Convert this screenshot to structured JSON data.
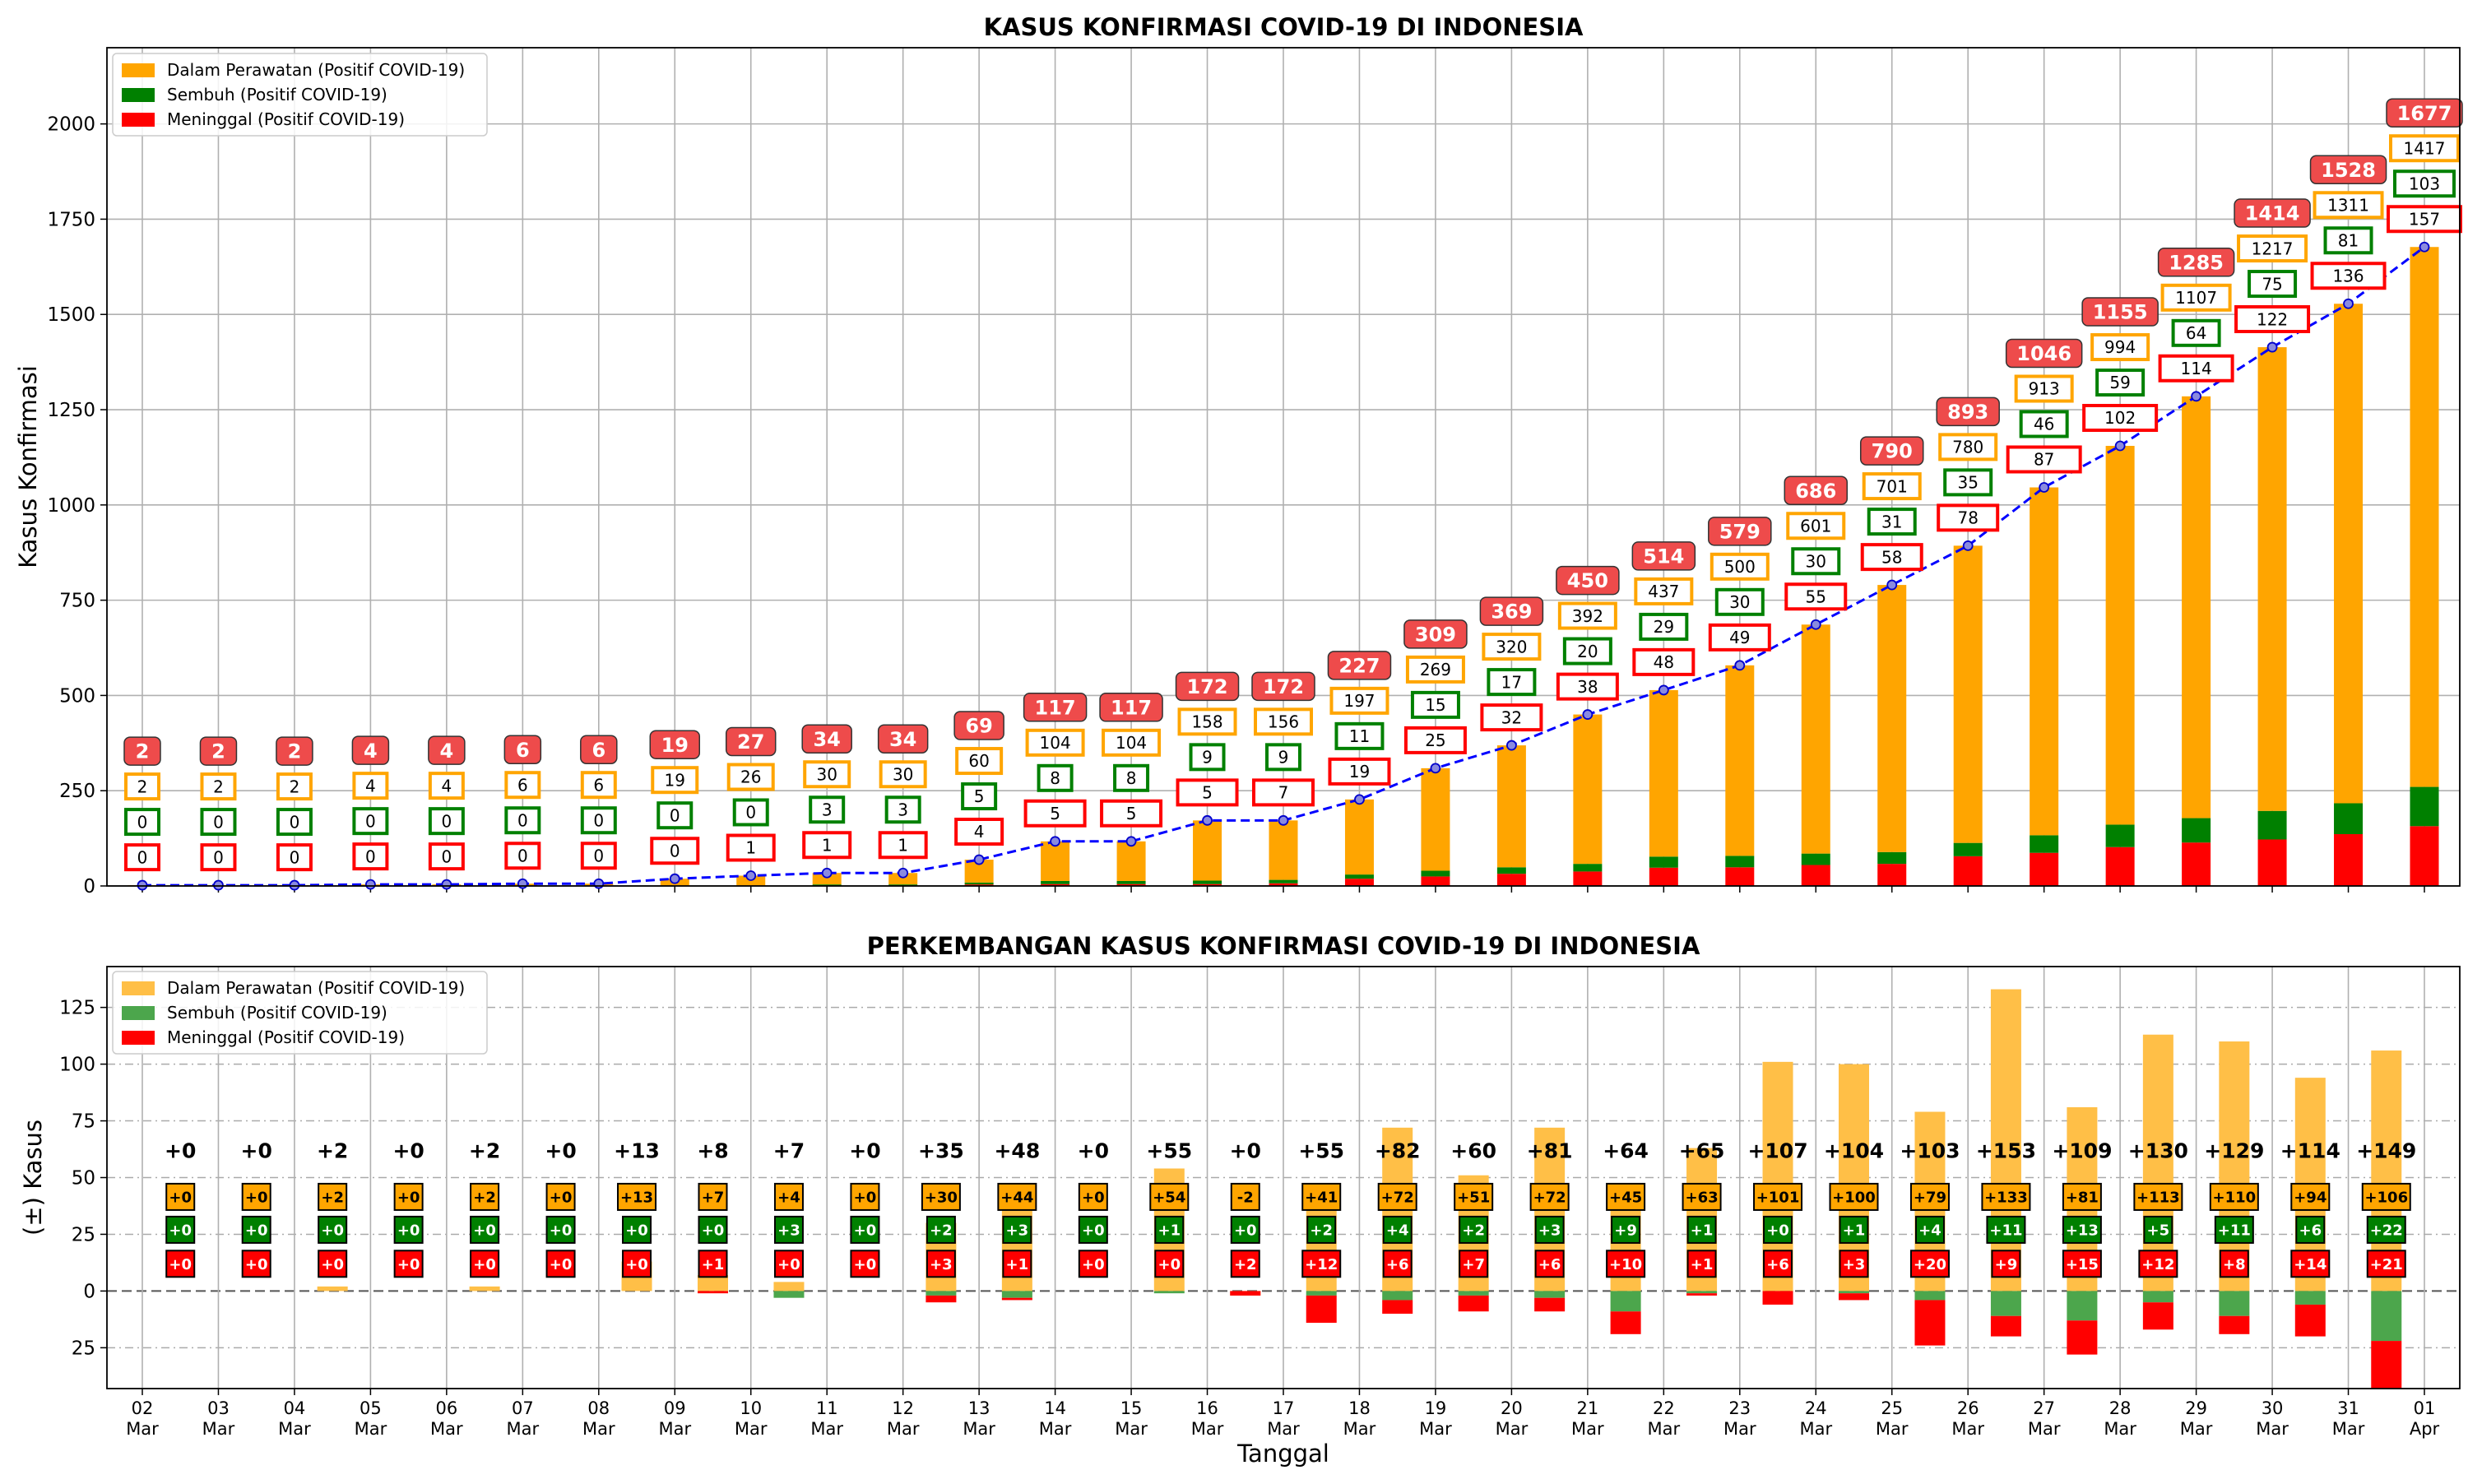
{
  "chart_data": [
    {
      "type": "bar",
      "stacked": true,
      "title": "KASUS KONFIRMASI COVID-19 DI INDONESIA",
      "ylabel": "Kasus Konfirmasi",
      "ylim": [
        0,
        2200
      ],
      "yticks": [
        "0",
        "250",
        "500",
        "750",
        "1000",
        "1250",
        "1500",
        "1750",
        "2000"
      ],
      "grid": true,
      "legend_position": "top-left",
      "categories": [
        [
          "02",
          "Mar"
        ],
        [
          "03",
          "Mar"
        ],
        [
          "04",
          "Mar"
        ],
        [
          "05",
          "Mar"
        ],
        [
          "06",
          "Mar"
        ],
        [
          "07",
          "Mar"
        ],
        [
          "08",
          "Mar"
        ],
        [
          "09",
          "Mar"
        ],
        [
          "10",
          "Mar"
        ],
        [
          "11",
          "Mar"
        ],
        [
          "12",
          "Mar"
        ],
        [
          "13",
          "Mar"
        ],
        [
          "14",
          "Mar"
        ],
        [
          "15",
          "Mar"
        ],
        [
          "16",
          "Mar"
        ],
        [
          "17",
          "Mar"
        ],
        [
          "18",
          "Mar"
        ],
        [
          "19",
          "Mar"
        ],
        [
          "20",
          "Mar"
        ],
        [
          "21",
          "Mar"
        ],
        [
          "22",
          "Mar"
        ],
        [
          "23",
          "Mar"
        ],
        [
          "24",
          "Mar"
        ],
        [
          "25",
          "Mar"
        ],
        [
          "26",
          "Mar"
        ],
        [
          "27",
          "Mar"
        ],
        [
          "28",
          "Mar"
        ],
        [
          "29",
          "Mar"
        ],
        [
          "30",
          "Mar"
        ],
        [
          "31",
          "Mar"
        ],
        [
          "01",
          "Apr"
        ]
      ],
      "series": [
        {
          "name": "Dalam Perawatan (Positif COVID-19)",
          "color": "#ffa500",
          "values": [
            2,
            2,
            2,
            4,
            4,
            6,
            6,
            19,
            26,
            30,
            30,
            60,
            104,
            104,
            158,
            156,
            197,
            269,
            320,
            392,
            437,
            500,
            601,
            701,
            780,
            913,
            994,
            1107,
            1217,
            1311,
            1417
          ]
        },
        {
          "name": "Sembuh (Positif COVID-19)",
          "color": "#008000",
          "values": [
            0,
            0,
            0,
            0,
            0,
            0,
            0,
            0,
            0,
            3,
            3,
            5,
            8,
            8,
            9,
            9,
            11,
            15,
            17,
            20,
            29,
            30,
            30,
            31,
            35,
            46,
            59,
            64,
            75,
            81,
            103
          ]
        },
        {
          "name": "Meninggal (Positif COVID-19)",
          "color": "#ff0000",
          "values": [
            0,
            0,
            0,
            0,
            0,
            0,
            0,
            0,
            1,
            1,
            1,
            4,
            5,
            5,
            5,
            7,
            19,
            25,
            32,
            38,
            48,
            49,
            55,
            58,
            78,
            87,
            102,
            114,
            122,
            136,
            157
          ]
        }
      ],
      "total": [
        2,
        2,
        2,
        4,
        4,
        6,
        6,
        19,
        27,
        34,
        34,
        69,
        117,
        117,
        172,
        172,
        227,
        309,
        369,
        450,
        514,
        579,
        686,
        790,
        893,
        1046,
        1155,
        1285,
        1414,
        1528,
        1677
      ],
      "total_line_color": "#0000ff"
    },
    {
      "type": "bar",
      "title": "PERKEMBANGAN KASUS KONFIRMASI COVID-19 DI INDONESIA",
      "xlabel": "Tanggal",
      "ylabel": "(±) Kasus",
      "ylim": [
        -43,
        143
      ],
      "yticks": [
        {
          "v": 125,
          "label": "125"
        },
        {
          "v": 100,
          "label": "100"
        },
        {
          "v": 75,
          "label": "75"
        },
        {
          "v": 50,
          "label": "50"
        },
        {
          "v": 25,
          "label": "25"
        },
        {
          "v": 0,
          "label": "0"
        },
        {
          "v": -25,
          "label": "25"
        }
      ],
      "legend_position": "top-left",
      "series": [
        {
          "name": "Dalam Perawatan (Positif COVID-19)",
          "color": "#ffbf47",
          "values": [
            0,
            0,
            2,
            0,
            2,
            0,
            13,
            7,
            4,
            0,
            30,
            44,
            0,
            54,
            -2,
            41,
            72,
            51,
            72,
            45,
            63,
            101,
            100,
            79,
            133,
            81,
            113,
            110,
            94,
            106
          ],
          "labels": [
            "+0",
            "+0",
            "+2",
            "+0",
            "+2",
            "+0",
            "+13",
            "+7",
            "+4",
            "+0",
            "+30",
            "+44",
            "+0",
            "+54",
            "-2",
            "+41",
            "+72",
            "+51",
            "+72",
            "+45",
            "+63",
            "+101",
            "+100",
            "+79",
            "+133",
            "+81",
            "+113",
            "+110",
            "+94",
            "+106"
          ]
        },
        {
          "name": "Sembuh (Positif COVID-19)",
          "color": "#4ca64c",
          "values": [
            0,
            0,
            0,
            0,
            0,
            0,
            0,
            0,
            3,
            0,
            2,
            3,
            0,
            1,
            0,
            2,
            4,
            2,
            3,
            9,
            1,
            0,
            1,
            4,
            11,
            13,
            5,
            11,
            6,
            22
          ],
          "labels": [
            "+0",
            "+0",
            "+0",
            "+0",
            "+0",
            "+0",
            "+0",
            "+0",
            "+3",
            "+0",
            "+2",
            "+3",
            "+0",
            "+1",
            "+0",
            "+2",
            "+4",
            "+2",
            "+3",
            "+9",
            "+1",
            "+0",
            "+1",
            "+4",
            "+11",
            "+13",
            "+5",
            "+11",
            "+6",
            "+22"
          ]
        },
        {
          "name": "Meninggal (Positif COVID-19)",
          "color": "#ff0000",
          "values": [
            0,
            0,
            0,
            0,
            0,
            0,
            0,
            1,
            0,
            0,
            3,
            1,
            0,
            0,
            2,
            12,
            6,
            7,
            6,
            10,
            1,
            6,
            3,
            20,
            9,
            15,
            12,
            8,
            14,
            21
          ],
          "labels": [
            "+0",
            "+0",
            "+0",
            "+0",
            "+0",
            "+0",
            "+0",
            "+1",
            "+0",
            "+0",
            "+3",
            "+1",
            "+0",
            "+0",
            "+2",
            "+12",
            "+6",
            "+7",
            "+6",
            "+10",
            "+1",
            "+6",
            "+3",
            "+20",
            "+9",
            "+15",
            "+12",
            "+8",
            "+14",
            "+21"
          ]
        }
      ],
      "total_change_labels": [
        "+0",
        "+0",
        "+2",
        "+0",
        "+2",
        "+0",
        "+13",
        "+8",
        "+7",
        "+0",
        "+35",
        "+48",
        "+0",
        "+55",
        "+0",
        "+55",
        "+82",
        "+60",
        "+81",
        "+64",
        "+65",
        "+107",
        "+104",
        "+103",
        "+153",
        "+109",
        "+130",
        "+129",
        "+114",
        "+149"
      ]
    }
  ]
}
